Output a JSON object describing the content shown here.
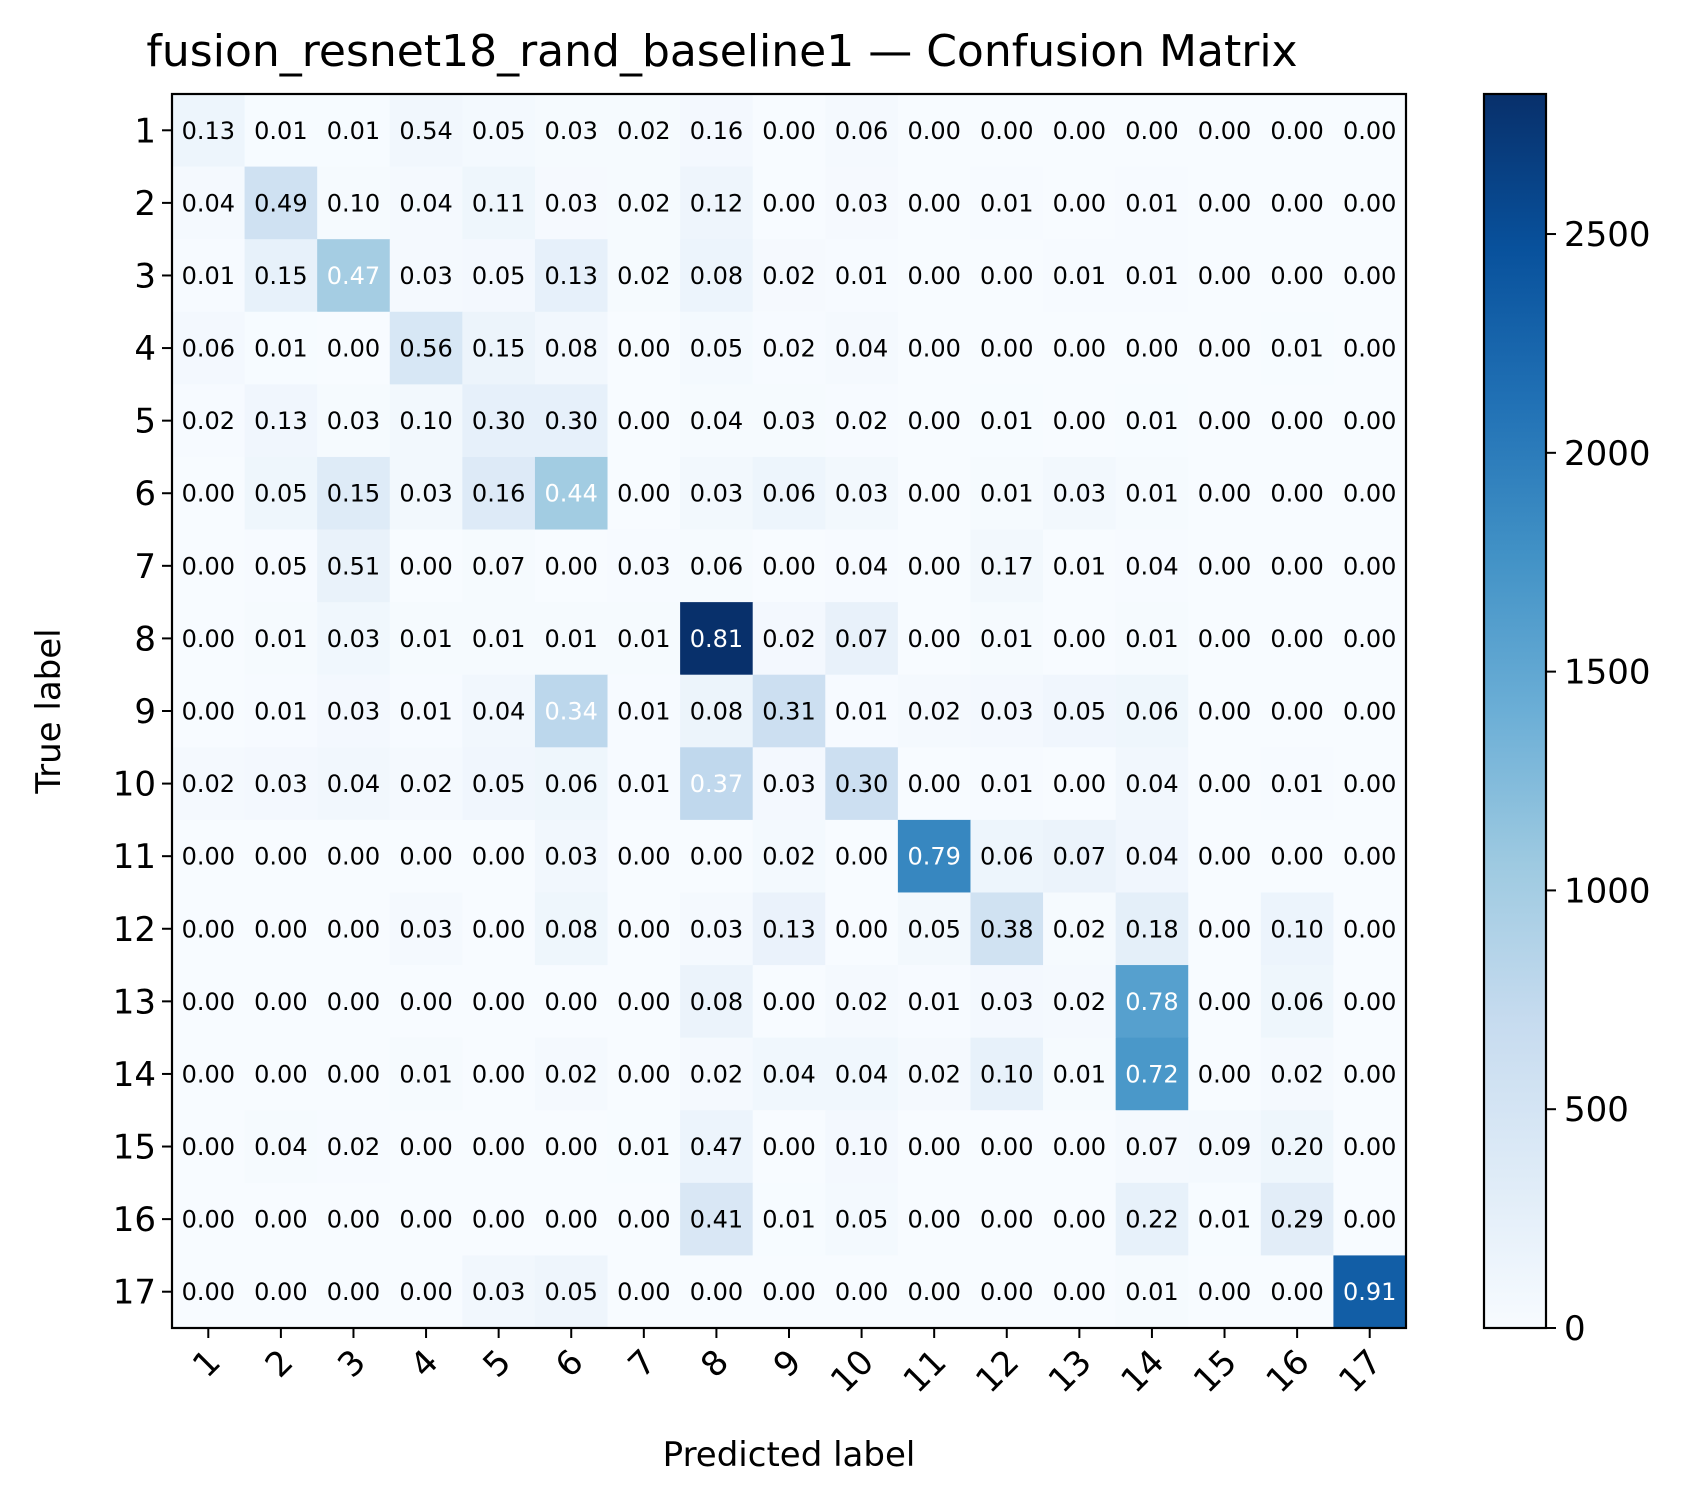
{
  "chart_data": {
    "type": "heatmap",
    "title": "fusion_resnet18_rand_baseline1 — Confusion Matrix",
    "xlabel": "Predicted label",
    "ylabel": "True label",
    "x_tick_labels": [
      "1",
      "2",
      "3",
      "4",
      "5",
      "6",
      "7",
      "8",
      "9",
      "10",
      "11",
      "12",
      "13",
      "14",
      "15",
      "16",
      "17"
    ],
    "y_tick_labels": [
      "1",
      "2",
      "3",
      "4",
      "5",
      "6",
      "7",
      "8",
      "9",
      "10",
      "11",
      "12",
      "13",
      "14",
      "15",
      "16",
      "17"
    ],
    "colormap": "Blues",
    "colorbar": {
      "min": 0,
      "max": 2820,
      "ticks": [
        0,
        500,
        1000,
        1500,
        2000,
        2500
      ]
    },
    "matrix": [
      [
        "0.13",
        "0.01",
        "0.01",
        "0.54",
        "0.05",
        "0.03",
        "0.02",
        "0.16",
        "0.00",
        "0.06",
        "0.00",
        "0.00",
        "0.00",
        "0.00",
        "0.00",
        "0.00",
        "0.00"
      ],
      [
        "0.04",
        "0.49",
        "0.10",
        "0.04",
        "0.11",
        "0.03",
        "0.02",
        "0.12",
        "0.00",
        "0.03",
        "0.00",
        "0.01",
        "0.00",
        "0.01",
        "0.00",
        "0.00",
        "0.00"
      ],
      [
        "0.01",
        "0.15",
        "0.47",
        "0.03",
        "0.05",
        "0.13",
        "0.02",
        "0.08",
        "0.02",
        "0.01",
        "0.00",
        "0.00",
        "0.01",
        "0.01",
        "0.00",
        "0.00",
        "0.00"
      ],
      [
        "0.06",
        "0.01",
        "0.00",
        "0.56",
        "0.15",
        "0.08",
        "0.00",
        "0.05",
        "0.02",
        "0.04",
        "0.00",
        "0.00",
        "0.00",
        "0.00",
        "0.00",
        "0.01",
        "0.00"
      ],
      [
        "0.02",
        "0.13",
        "0.03",
        "0.10",
        "0.30",
        "0.30",
        "0.00",
        "0.04",
        "0.03",
        "0.02",
        "0.00",
        "0.01",
        "0.00",
        "0.01",
        "0.00",
        "0.00",
        "0.00"
      ],
      [
        "0.00",
        "0.05",
        "0.15",
        "0.03",
        "0.16",
        "0.44",
        "0.00",
        "0.03",
        "0.06",
        "0.03",
        "0.00",
        "0.01",
        "0.03",
        "0.01",
        "0.00",
        "0.00",
        "0.00"
      ],
      [
        "0.00",
        "0.05",
        "0.51",
        "0.00",
        "0.07",
        "0.00",
        "0.03",
        "0.06",
        "0.00",
        "0.04",
        "0.00",
        "0.17",
        "0.01",
        "0.04",
        "0.00",
        "0.00",
        "0.00"
      ],
      [
        "0.00",
        "0.01",
        "0.03",
        "0.01",
        "0.01",
        "0.01",
        "0.01",
        "0.81",
        "0.02",
        "0.07",
        "0.00",
        "0.01",
        "0.00",
        "0.01",
        "0.00",
        "0.00",
        "0.00"
      ],
      [
        "0.00",
        "0.01",
        "0.03",
        "0.01",
        "0.04",
        "0.34",
        "0.01",
        "0.08",
        "0.31",
        "0.01",
        "0.02",
        "0.03",
        "0.05",
        "0.06",
        "0.00",
        "0.00",
        "0.00"
      ],
      [
        "0.02",
        "0.03",
        "0.04",
        "0.02",
        "0.05",
        "0.06",
        "0.01",
        "0.37",
        "0.03",
        "0.30",
        "0.00",
        "0.01",
        "0.00",
        "0.04",
        "0.00",
        "0.01",
        "0.00"
      ],
      [
        "0.00",
        "0.00",
        "0.00",
        "0.00",
        "0.00",
        "0.03",
        "0.00",
        "0.00",
        "0.02",
        "0.00",
        "0.79",
        "0.06",
        "0.07",
        "0.04",
        "0.00",
        "0.00",
        "0.00"
      ],
      [
        "0.00",
        "0.00",
        "0.00",
        "0.03",
        "0.00",
        "0.08",
        "0.00",
        "0.03",
        "0.13",
        "0.00",
        "0.05",
        "0.38",
        "0.02",
        "0.18",
        "0.00",
        "0.10",
        "0.00"
      ],
      [
        "0.00",
        "0.00",
        "0.00",
        "0.00",
        "0.00",
        "0.00",
        "0.00",
        "0.08",
        "0.00",
        "0.02",
        "0.01",
        "0.03",
        "0.02",
        "0.78",
        "0.00",
        "0.06",
        "0.00"
      ],
      [
        "0.00",
        "0.00",
        "0.00",
        "0.01",
        "0.00",
        "0.02",
        "0.00",
        "0.02",
        "0.04",
        "0.04",
        "0.02",
        "0.10",
        "0.01",
        "0.72",
        "0.00",
        "0.02",
        "0.00"
      ],
      [
        "0.00",
        "0.04",
        "0.02",
        "0.00",
        "0.00",
        "0.00",
        "0.01",
        "0.47",
        "0.00",
        "0.10",
        "0.00",
        "0.00",
        "0.00",
        "0.07",
        "0.09",
        "0.20",
        "0.00"
      ],
      [
        "0.00",
        "0.00",
        "0.00",
        "0.00",
        "0.00",
        "0.00",
        "0.00",
        "0.41",
        "0.01",
        "0.05",
        "0.00",
        "0.00",
        "0.00",
        "0.22",
        "0.01",
        "0.29",
        "0.00"
      ],
      [
        "0.00",
        "0.00",
        "0.00",
        "0.00",
        "0.03",
        "0.05",
        "0.00",
        "0.00",
        "0.00",
        "0.00",
        "0.00",
        "0.00",
        "0.00",
        "0.01",
        "0.00",
        "0.00",
        "0.91"
      ]
    ],
    "cell_counts_estimated": [
      [
        140,
        10,
        10,
        90,
        55,
        30,
        25,
        60,
        5,
        40,
        5,
        5,
        5,
        5,
        5,
        5,
        5
      ],
      [
        40,
        580,
        30,
        40,
        120,
        35,
        25,
        130,
        5,
        35,
        5,
        15,
        5,
        15,
        5,
        5,
        5
      ],
      [
        15,
        230,
        1000,
        40,
        60,
        240,
        25,
        150,
        35,
        15,
        5,
        5,
        15,
        15,
        5,
        5,
        5
      ],
      [
        60,
        10,
        5,
        450,
        160,
        80,
        5,
        50,
        20,
        40,
        5,
        5,
        5,
        5,
        5,
        10,
        5
      ],
      [
        20,
        100,
        25,
        70,
        240,
        240,
        5,
        30,
        25,
        15,
        5,
        10,
        5,
        10,
        5,
        5,
        5
      ],
      [
        5,
        120,
        350,
        70,
        370,
        1020,
        5,
        70,
        140,
        70,
        5,
        25,
        70,
        25,
        5,
        5,
        5
      ],
      [
        5,
        20,
        200,
        5,
        30,
        5,
        15,
        25,
        5,
        20,
        5,
        70,
        5,
        20,
        5,
        5,
        5
      ],
      [
        5,
        30,
        95,
        30,
        30,
        30,
        30,
        2820,
        60,
        210,
        5,
        30,
        5,
        30,
        5,
        5,
        5
      ],
      [
        5,
        20,
        60,
        20,
        80,
        790,
        20,
        160,
        620,
        20,
        40,
        60,
        100,
        120,
        5,
        5,
        5
      ],
      [
        40,
        60,
        80,
        40,
        100,
        120,
        20,
        760,
        60,
        620,
        5,
        20,
        5,
        80,
        5,
        20,
        5
      ],
      [
        5,
        5,
        5,
        5,
        5,
        80,
        5,
        5,
        50,
        5,
        1880,
        140,
        170,
        100,
        5,
        5,
        5
      ],
      [
        5,
        5,
        5,
        40,
        5,
        120,
        5,
        45,
        190,
        5,
        75,
        560,
        30,
        270,
        5,
        150,
        5
      ],
      [
        5,
        5,
        5,
        5,
        5,
        5,
        5,
        170,
        5,
        45,
        20,
        60,
        45,
        1590,
        5,
        120,
        5
      ],
      [
        5,
        5,
        5,
        25,
        5,
        45,
        5,
        45,
        95,
        95,
        45,
        230,
        25,
        1690,
        5,
        45,
        5
      ],
      [
        5,
        25,
        15,
        5,
        5,
        5,
        8,
        150,
        5,
        60,
        5,
        5,
        5,
        45,
        55,
        120,
        5
      ],
      [
        5,
        5,
        5,
        5,
        5,
        5,
        5,
        430,
        10,
        55,
        5,
        5,
        5,
        230,
        10,
        300,
        5
      ],
      [
        5,
        5,
        5,
        5,
        80,
        130,
        5,
        5,
        5,
        5,
        5,
        5,
        5,
        25,
        5,
        5,
        2320
      ]
    ]
  }
}
